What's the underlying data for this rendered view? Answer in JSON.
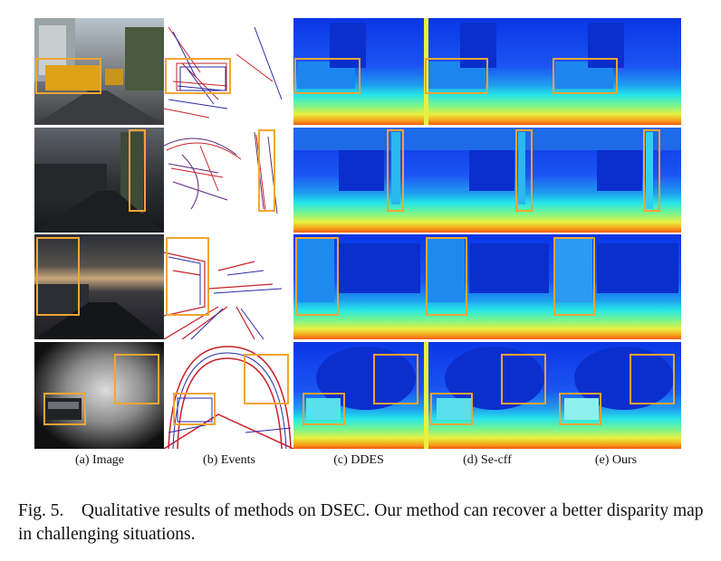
{
  "figure": {
    "column_labels": [
      "(a) Image",
      "(b) Events",
      "(c) DDES",
      "(d) Se-cff",
      "(e) Ours"
    ],
    "caption_prefix": "Fig. 5.",
    "caption_text": "Qualitative results of methods on DSEC. Our method can recover a better disparity map in challenging situations.",
    "highlight_color": "#f2a531"
  }
}
